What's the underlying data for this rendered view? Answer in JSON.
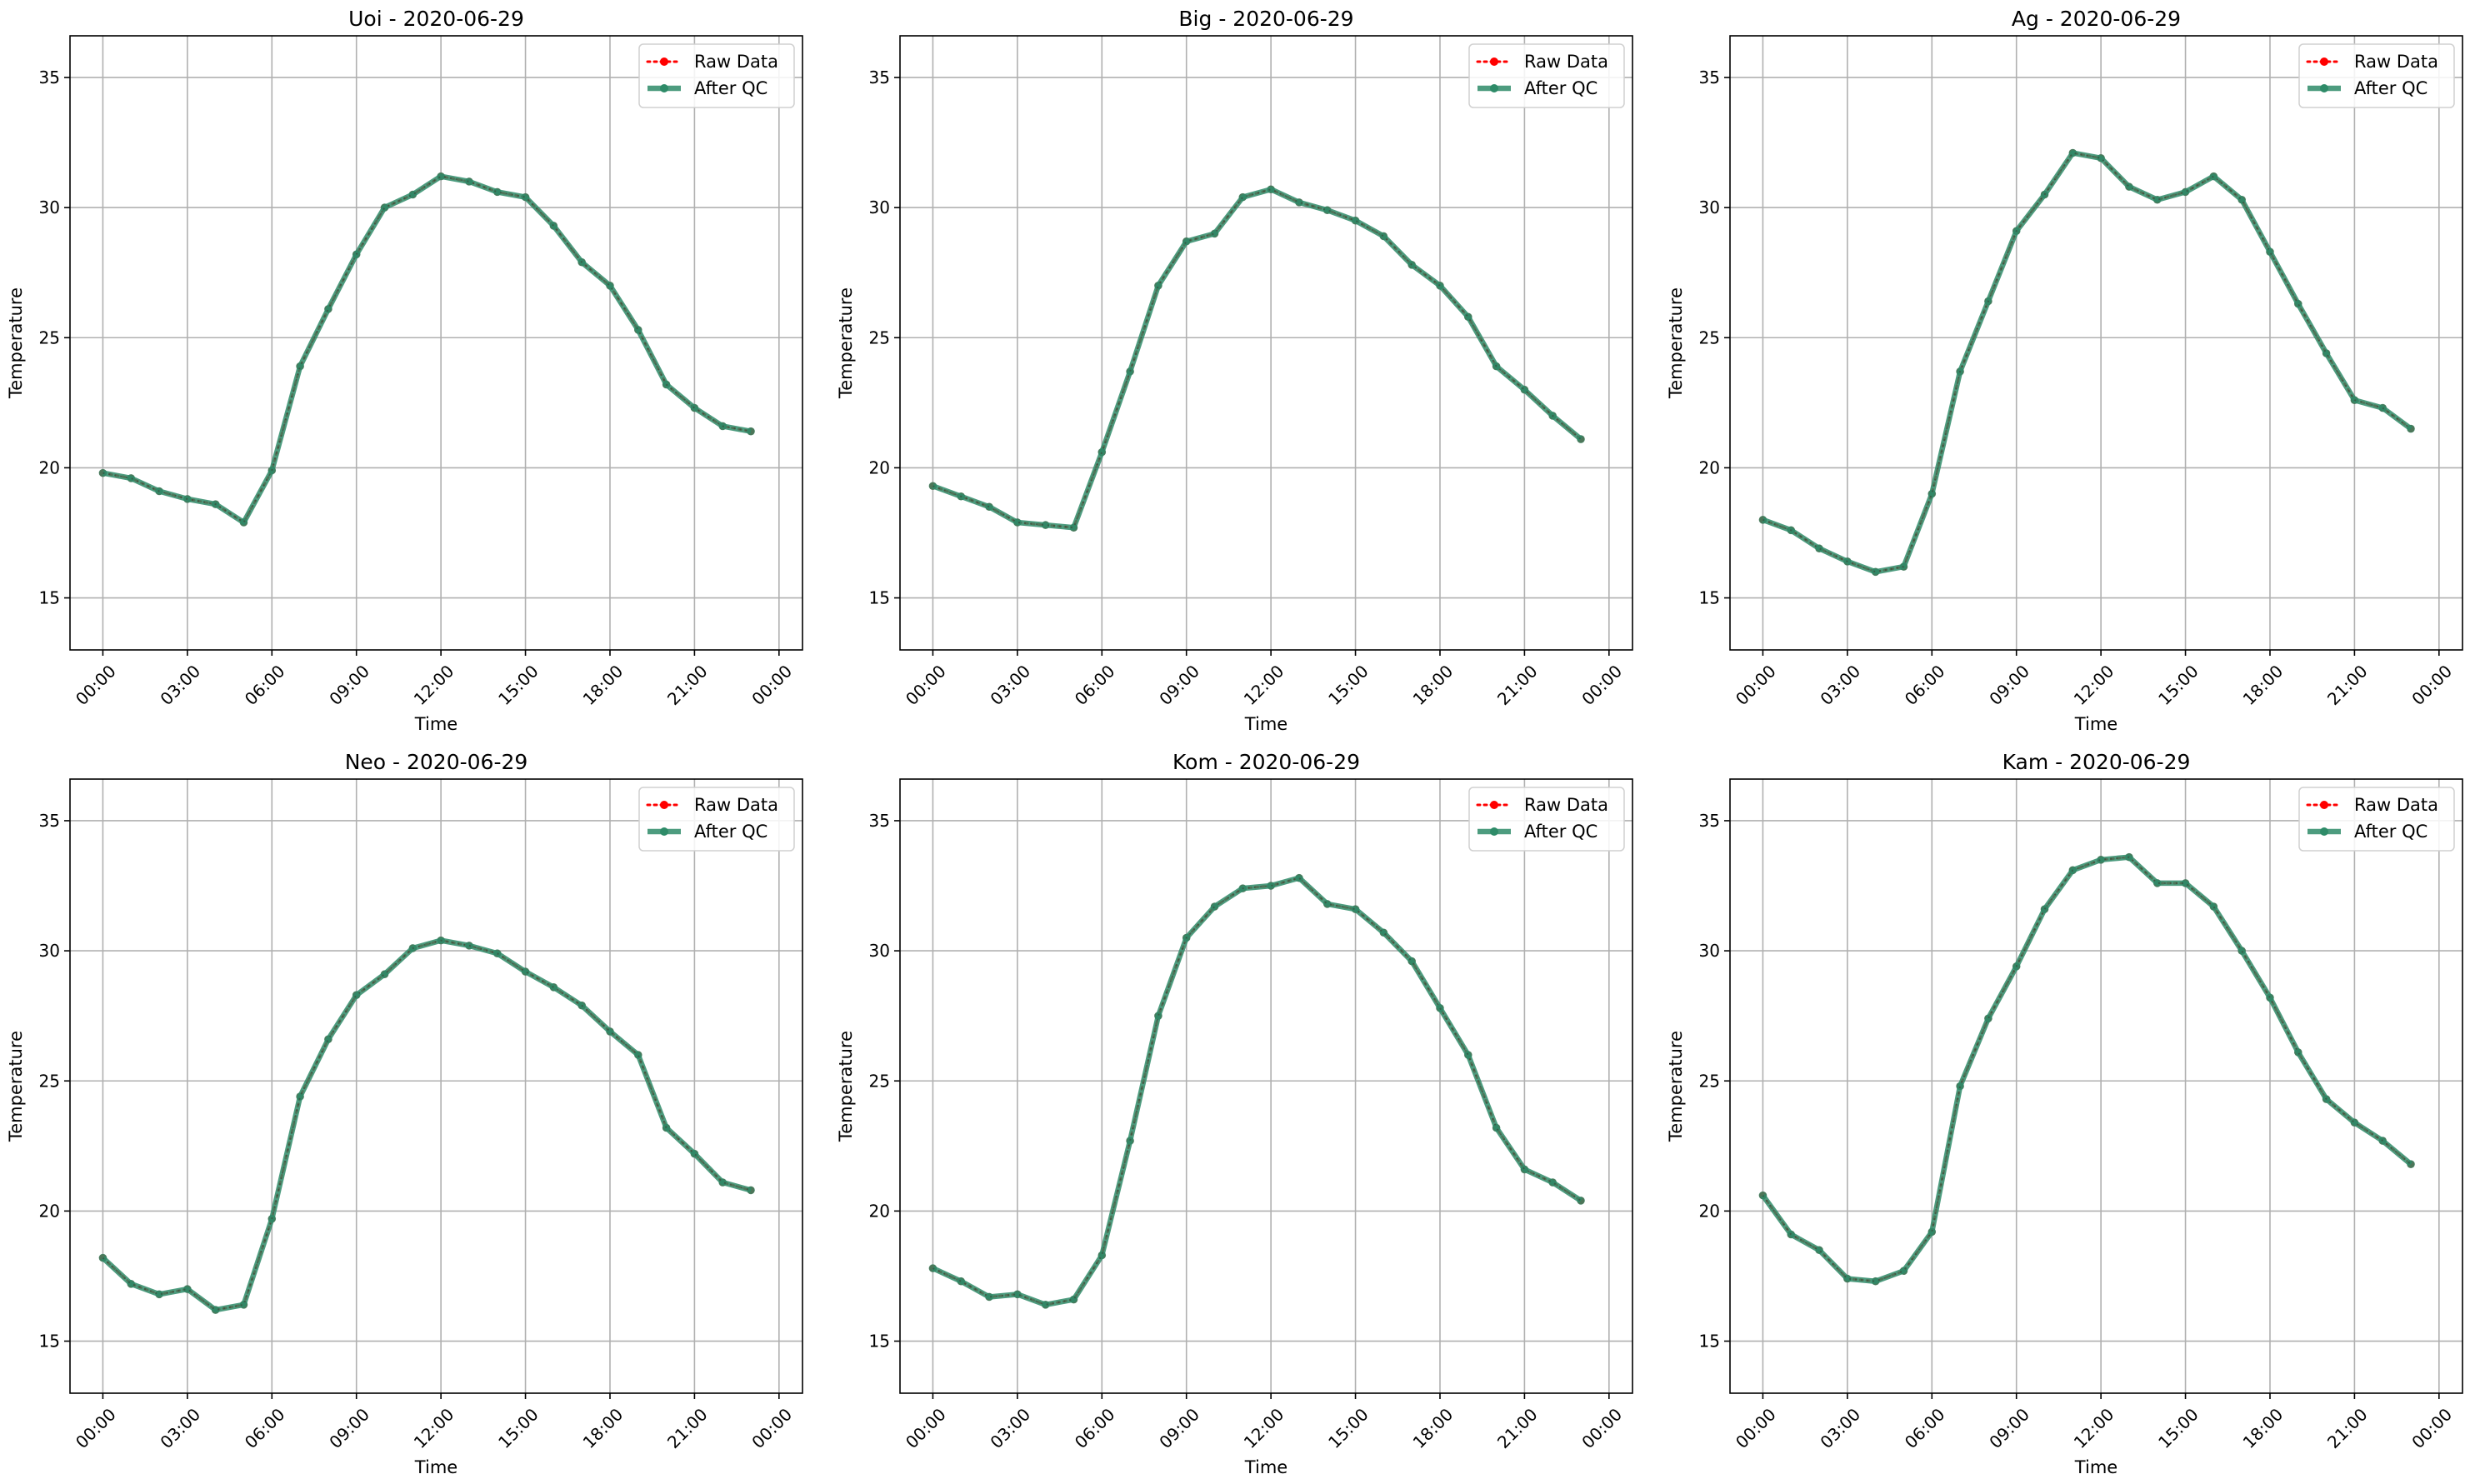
{
  "figure": {
    "axes": [
      "Uoi",
      "Big",
      "Ag",
      "Neo",
      "Kom",
      "Kam"
    ]
  },
  "colors": {
    "raw": "#ff0000",
    "qc": "#2e8b68",
    "grid": "#b0b0b0",
    "axes": "#000000"
  },
  "chart_data": [
    {
      "type": "line",
      "title": "Uoi - 2020-06-29",
      "xlabel": "Time",
      "ylabel": "Temperature",
      "ylim": [
        13,
        36.6
      ],
      "xlim": [
        "2020-06-28 22:50",
        "2020-06-30 00:50"
      ],
      "xticks": [
        "00:00",
        "03:00",
        "06:00",
        "09:00",
        "12:00",
        "15:00",
        "18:00",
        "21:00",
        "00:00"
      ],
      "yticks": [
        15,
        20,
        25,
        30,
        35
      ],
      "grid": true,
      "legend_position": "top-right",
      "x": [
        "00:00",
        "01:00",
        "02:00",
        "03:00",
        "04:00",
        "05:00",
        "06:00",
        "07:00",
        "08:00",
        "09:00",
        "10:00",
        "11:00",
        "12:00",
        "13:00",
        "14:00",
        "15:00",
        "16:00",
        "17:00",
        "18:00",
        "19:00",
        "20:00",
        "21:00",
        "22:00",
        "23:00"
      ],
      "series": [
        {
          "name": "Raw Data",
          "values": [
            19.8,
            19.6,
            19.1,
            18.8,
            18.6,
            17.9,
            19.9,
            23.9,
            26.1,
            28.2,
            30.0,
            30.5,
            31.2,
            31.0,
            30.6,
            30.4,
            29.3,
            27.9,
            27.0,
            25.3,
            23.2,
            22.3,
            21.6,
            21.4
          ]
        },
        {
          "name": "After QC",
          "values": [
            19.8,
            19.6,
            19.1,
            18.8,
            18.6,
            17.9,
            19.9,
            23.9,
            26.1,
            28.2,
            30.0,
            30.5,
            31.2,
            31.0,
            30.6,
            30.4,
            29.3,
            27.9,
            27.0,
            25.3,
            23.2,
            22.3,
            21.6,
            21.4
          ]
        }
      ]
    },
    {
      "type": "line",
      "title": "Big - 2020-06-29",
      "xlabel": "Time",
      "ylabel": "Temperature",
      "ylim": [
        13,
        36.6
      ],
      "xlim": [
        "2020-06-28 22:50",
        "2020-06-30 00:50"
      ],
      "xticks": [
        "00:00",
        "03:00",
        "06:00",
        "09:00",
        "12:00",
        "15:00",
        "18:00",
        "21:00",
        "00:00"
      ],
      "yticks": [
        15,
        20,
        25,
        30,
        35
      ],
      "grid": true,
      "legend_position": "top-right",
      "x": [
        "00:00",
        "01:00",
        "02:00",
        "03:00",
        "04:00",
        "05:00",
        "06:00",
        "07:00",
        "08:00",
        "09:00",
        "10:00",
        "11:00",
        "12:00",
        "13:00",
        "14:00",
        "15:00",
        "16:00",
        "17:00",
        "18:00",
        "19:00",
        "20:00",
        "21:00",
        "22:00",
        "23:00"
      ],
      "series": [
        {
          "name": "Raw Data",
          "values": [
            19.3,
            18.9,
            18.5,
            17.9,
            17.8,
            17.7,
            20.6,
            23.7,
            27.0,
            28.7,
            29.0,
            30.4,
            30.7,
            30.2,
            29.9,
            29.5,
            28.9,
            27.8,
            27.0,
            25.8,
            23.9,
            23.0,
            22.0,
            21.1
          ]
        },
        {
          "name": "After QC",
          "values": [
            19.3,
            18.9,
            18.5,
            17.9,
            17.8,
            17.7,
            20.6,
            23.7,
            27.0,
            28.7,
            29.0,
            30.4,
            30.7,
            30.2,
            29.9,
            29.5,
            28.9,
            27.8,
            27.0,
            25.8,
            23.9,
            23.0,
            22.0,
            21.1
          ]
        }
      ]
    },
    {
      "type": "line",
      "title": "Ag - 2020-06-29",
      "xlabel": "Time",
      "ylabel": "Temperature",
      "ylim": [
        13,
        36.6
      ],
      "xlim": [
        "2020-06-28 22:50",
        "2020-06-30 00:50"
      ],
      "xticks": [
        "00:00",
        "03:00",
        "06:00",
        "09:00",
        "12:00",
        "15:00",
        "18:00",
        "21:00",
        "00:00"
      ],
      "yticks": [
        15,
        20,
        25,
        30,
        35
      ],
      "grid": true,
      "legend_position": "top-right",
      "x": [
        "00:00",
        "01:00",
        "02:00",
        "03:00",
        "04:00",
        "05:00",
        "06:00",
        "07:00",
        "08:00",
        "09:00",
        "10:00",
        "11:00",
        "12:00",
        "13:00",
        "14:00",
        "15:00",
        "16:00",
        "17:00",
        "18:00",
        "19:00",
        "20:00",
        "21:00",
        "22:00",
        "23:00"
      ],
      "series": [
        {
          "name": "Raw Data",
          "values": [
            18.0,
            17.6,
            16.9,
            16.4,
            16.0,
            16.2,
            19.0,
            23.7,
            26.4,
            29.1,
            30.5,
            32.1,
            31.9,
            30.8,
            30.3,
            30.6,
            31.2,
            30.3,
            28.3,
            26.3,
            24.4,
            22.6,
            22.3,
            21.5
          ]
        },
        {
          "name": "After QC",
          "values": [
            18.0,
            17.6,
            16.9,
            16.4,
            16.0,
            16.2,
            19.0,
            23.7,
            26.4,
            29.1,
            30.5,
            32.1,
            31.9,
            30.8,
            30.3,
            30.6,
            31.2,
            30.3,
            28.3,
            26.3,
            24.4,
            22.6,
            22.3,
            21.5
          ]
        }
      ]
    },
    {
      "type": "line",
      "title": "Neo - 2020-06-29",
      "xlabel": "Time",
      "ylabel": "Temperature",
      "ylim": [
        13,
        36.6
      ],
      "xlim": [
        "2020-06-28 22:50",
        "2020-06-30 00:50"
      ],
      "xticks": [
        "00:00",
        "03:00",
        "06:00",
        "09:00",
        "12:00",
        "15:00",
        "18:00",
        "21:00",
        "00:00"
      ],
      "yticks": [
        15,
        20,
        25,
        30,
        35
      ],
      "grid": true,
      "legend_position": "top-right",
      "x": [
        "00:00",
        "01:00",
        "02:00",
        "03:00",
        "04:00",
        "05:00",
        "06:00",
        "07:00",
        "08:00",
        "09:00",
        "10:00",
        "11:00",
        "12:00",
        "13:00",
        "14:00",
        "15:00",
        "16:00",
        "17:00",
        "18:00",
        "19:00",
        "20:00",
        "21:00",
        "22:00",
        "23:00"
      ],
      "series": [
        {
          "name": "Raw Data",
          "values": [
            18.2,
            17.2,
            16.8,
            17.0,
            16.2,
            16.4,
            19.7,
            24.4,
            26.6,
            28.3,
            29.1,
            30.1,
            30.4,
            30.2,
            29.9,
            29.2,
            28.6,
            27.9,
            26.9,
            26.0,
            23.2,
            22.2,
            21.1,
            20.8
          ]
        },
        {
          "name": "After QC",
          "values": [
            18.2,
            17.2,
            16.8,
            17.0,
            16.2,
            16.4,
            19.7,
            24.4,
            26.6,
            28.3,
            29.1,
            30.1,
            30.4,
            30.2,
            29.9,
            29.2,
            28.6,
            27.9,
            26.9,
            26.0,
            23.2,
            22.2,
            21.1,
            20.8
          ]
        }
      ]
    },
    {
      "type": "line",
      "title": "Kom - 2020-06-29",
      "xlabel": "Time",
      "ylabel": "Temperature",
      "ylim": [
        13,
        36.6
      ],
      "xlim": [
        "2020-06-28 22:50",
        "2020-06-30 00:50"
      ],
      "xticks": [
        "00:00",
        "03:00",
        "06:00",
        "09:00",
        "12:00",
        "15:00",
        "18:00",
        "21:00",
        "00:00"
      ],
      "yticks": [
        15,
        20,
        25,
        30,
        35
      ],
      "grid": true,
      "legend_position": "top-right",
      "x": [
        "00:00",
        "01:00",
        "02:00",
        "03:00",
        "04:00",
        "05:00",
        "06:00",
        "07:00",
        "08:00",
        "09:00",
        "10:00",
        "11:00",
        "12:00",
        "13:00",
        "14:00",
        "15:00",
        "16:00",
        "17:00",
        "18:00",
        "19:00",
        "20:00",
        "21:00",
        "22:00",
        "23:00"
      ],
      "series": [
        {
          "name": "Raw Data",
          "values": [
            17.8,
            17.3,
            16.7,
            16.8,
            16.4,
            16.6,
            18.3,
            22.7,
            27.5,
            30.5,
            31.7,
            32.4,
            32.5,
            32.8,
            31.8,
            31.6,
            30.7,
            29.6,
            27.8,
            26.0,
            23.2,
            21.6,
            21.1,
            20.4
          ]
        },
        {
          "name": "After QC",
          "values": [
            17.8,
            17.3,
            16.7,
            16.8,
            16.4,
            16.6,
            18.3,
            22.7,
            27.5,
            30.5,
            31.7,
            32.4,
            32.5,
            32.8,
            31.8,
            31.6,
            30.7,
            29.6,
            27.8,
            26.0,
            23.2,
            21.6,
            21.1,
            20.4
          ]
        }
      ]
    },
    {
      "type": "line",
      "title": "Kam - 2020-06-29",
      "xlabel": "Time",
      "ylabel": "Temperature",
      "ylim": [
        13,
        36.6
      ],
      "xlim": [
        "2020-06-28 22:50",
        "2020-06-30 00:50"
      ],
      "xticks": [
        "00:00",
        "03:00",
        "06:00",
        "09:00",
        "12:00",
        "15:00",
        "18:00",
        "21:00",
        "00:00"
      ],
      "yticks": [
        15,
        20,
        25,
        30,
        35
      ],
      "grid": true,
      "legend_position": "top-right",
      "x": [
        "00:00",
        "01:00",
        "02:00",
        "03:00",
        "04:00",
        "05:00",
        "06:00",
        "07:00",
        "08:00",
        "09:00",
        "10:00",
        "11:00",
        "12:00",
        "13:00",
        "14:00",
        "15:00",
        "16:00",
        "17:00",
        "18:00",
        "19:00",
        "20:00",
        "21:00",
        "22:00",
        "23:00"
      ],
      "series": [
        {
          "name": "Raw Data",
          "values": [
            20.6,
            19.1,
            18.5,
            17.4,
            17.3,
            17.7,
            19.2,
            24.8,
            27.4,
            29.4,
            31.6,
            33.1,
            33.5,
            33.6,
            32.6,
            32.6,
            31.7,
            30.0,
            28.2,
            26.1,
            24.3,
            23.4,
            22.7,
            21.8
          ]
        },
        {
          "name": "After QC",
          "values": [
            20.6,
            19.1,
            18.5,
            17.4,
            17.3,
            17.7,
            19.2,
            24.8,
            27.4,
            29.4,
            31.6,
            33.1,
            33.5,
            33.6,
            32.6,
            32.6,
            31.7,
            30.0,
            28.2,
            26.1,
            24.3,
            23.4,
            22.7,
            21.8
          ]
        }
      ]
    }
  ]
}
